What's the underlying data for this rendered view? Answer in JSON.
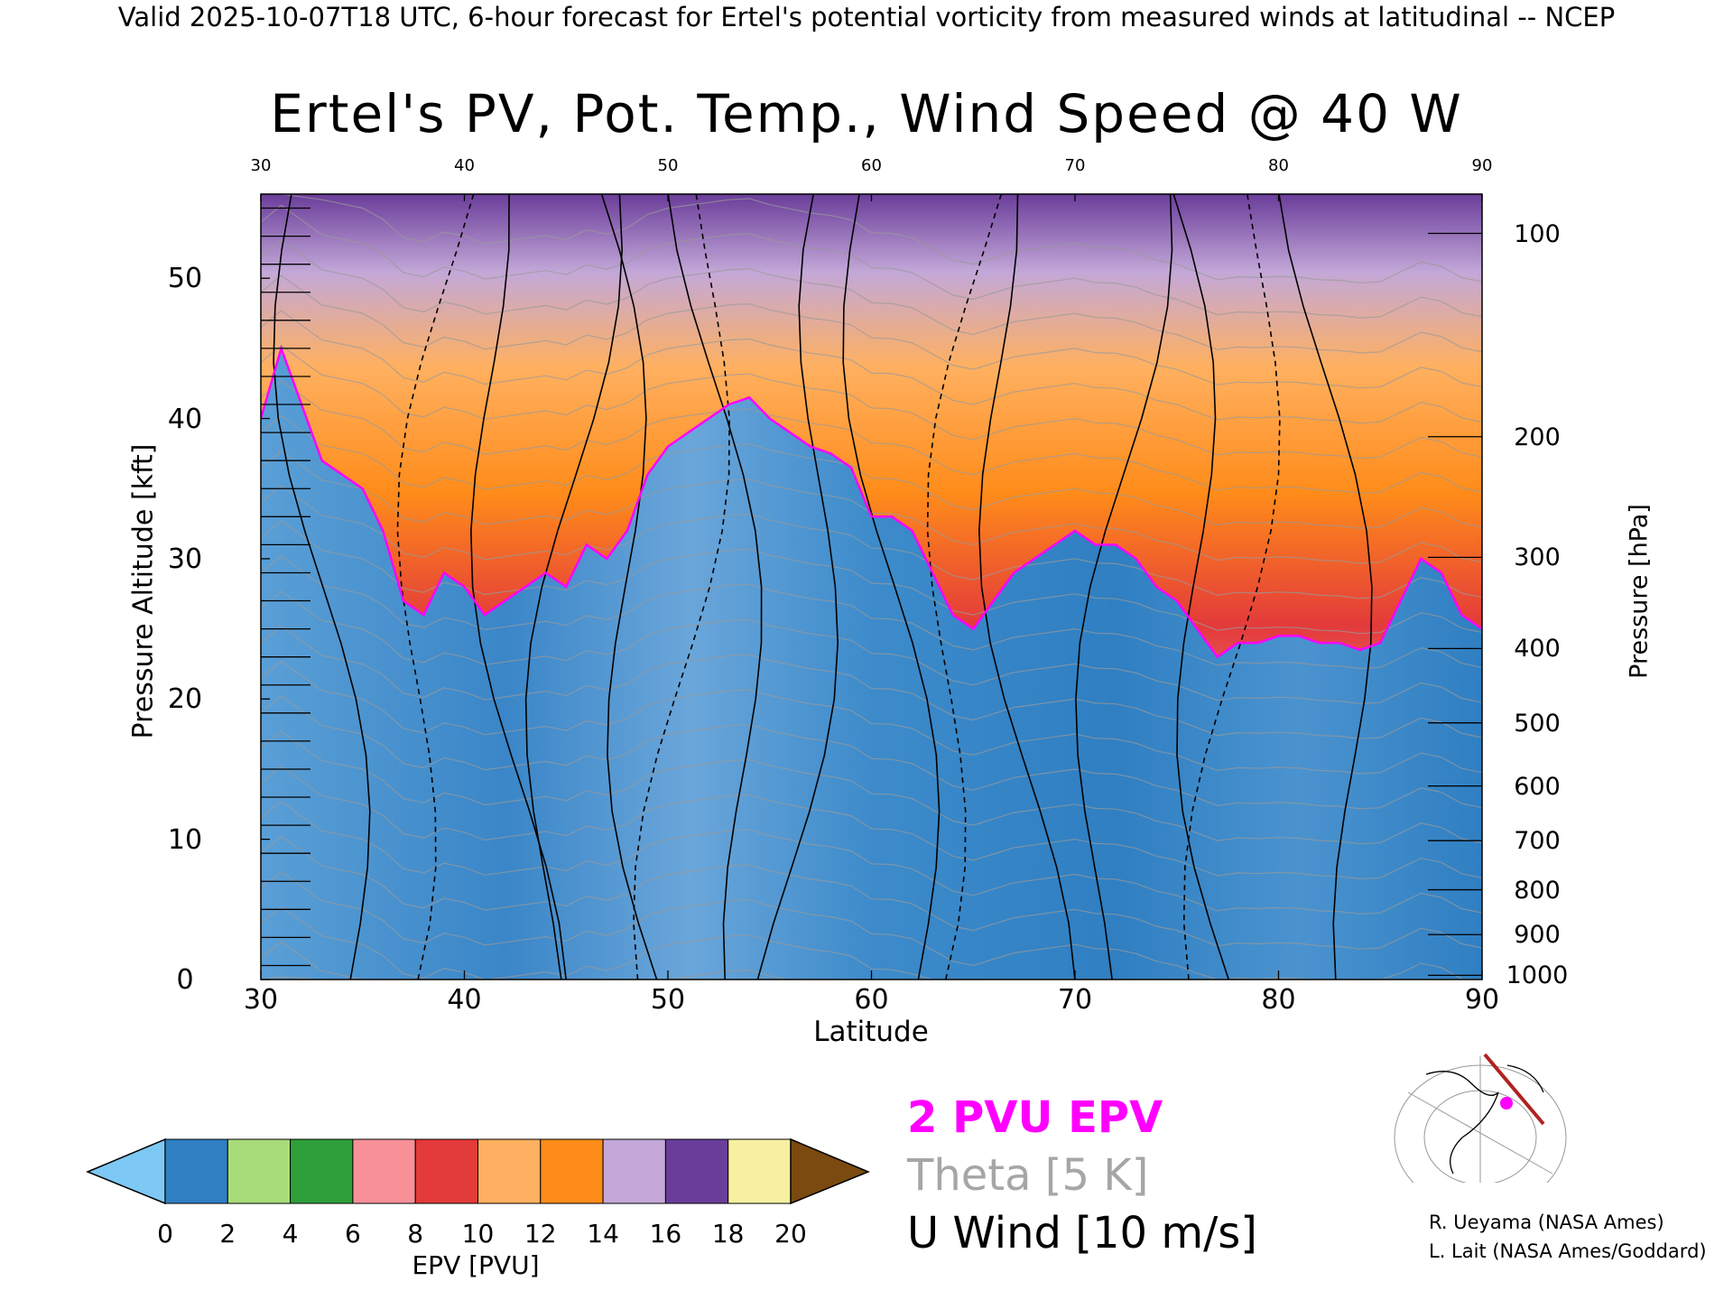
{
  "banner": "Valid 2025-10-07T18 UTC, 6-hour forecast for Ertel's potential vorticity from measured winds at latitudinal -- NCEP",
  "chart_data": {
    "type": "heatmap",
    "title": "Ertel's PV, Pot. Temp., Wind Speed @ 40 W",
    "xlabel": "Latitude",
    "ylabel": "Pressure Altitude [kft]",
    "y2label": "Pressure [hPa]",
    "xlim": [
      30,
      90
    ],
    "ylim": [
      0,
      56
    ],
    "x_ticks": [
      "30",
      "40",
      "50",
      "60",
      "70",
      "80",
      "90"
    ],
    "x_top_ticks": [
      "30",
      "40",
      "50",
      "60",
      "70",
      "80",
      "90"
    ],
    "y_ticks": [
      "0",
      "10",
      "20",
      "30",
      "40",
      "50"
    ],
    "pressure_ticks": [
      {
        "label": "100",
        "alt_kft": 53.2
      },
      {
        "label": "200",
        "alt_kft": 38.7
      },
      {
        "label": "300",
        "alt_kft": 30.1
      },
      {
        "label": "400",
        "alt_kft": 23.6
      },
      {
        "label": "500",
        "alt_kft": 18.3
      },
      {
        "label": "600",
        "alt_kft": 13.8
      },
      {
        "label": "700",
        "alt_kft": 9.9
      },
      {
        "label": "800",
        "alt_kft": 6.4
      },
      {
        "label": "900",
        "alt_kft": 3.2
      },
      {
        "label": "1000",
        "alt_kft": 0.3
      }
    ],
    "tropopause_2pvu_kft": [
      [
        30,
        40
      ],
      [
        31,
        45
      ],
      [
        33,
        37
      ],
      [
        35,
        35
      ],
      [
        36,
        32
      ],
      [
        37,
        27
      ],
      [
        38,
        26
      ],
      [
        39,
        29
      ],
      [
        40,
        28
      ],
      [
        41,
        26
      ],
      [
        42,
        27
      ],
      [
        43,
        28
      ],
      [
        44,
        29
      ],
      [
        45,
        28
      ],
      [
        46,
        31
      ],
      [
        47,
        30
      ],
      [
        48,
        32
      ],
      [
        49,
        36
      ],
      [
        50,
        38
      ],
      [
        51,
        39
      ],
      [
        52,
        40
      ],
      [
        53,
        41
      ],
      [
        54,
        41.5
      ],
      [
        55,
        40
      ],
      [
        56,
        39
      ],
      [
        57,
        38
      ],
      [
        58,
        37.5
      ],
      [
        59,
        36.5
      ],
      [
        60,
        33
      ],
      [
        61,
        33
      ],
      [
        62,
        32
      ],
      [
        63,
        29
      ],
      [
        64,
        26
      ],
      [
        65,
        25
      ],
      [
        66,
        27
      ],
      [
        67,
        29
      ],
      [
        68,
        30
      ],
      [
        69,
        31
      ],
      [
        70,
        32
      ],
      [
        71,
        31
      ],
      [
        72,
        31
      ],
      [
        73,
        30
      ],
      [
        74,
        28
      ],
      [
        75,
        27
      ],
      [
        76,
        25
      ],
      [
        77,
        23
      ],
      [
        78,
        24
      ],
      [
        79,
        24
      ],
      [
        80,
        24.5
      ],
      [
        81,
        24.5
      ],
      [
        82,
        24
      ],
      [
        83,
        24
      ],
      [
        84,
        23.5
      ],
      [
        85,
        24
      ],
      [
        86,
        27
      ],
      [
        87,
        30
      ],
      [
        88,
        29
      ],
      [
        89,
        26
      ],
      [
        90,
        25
      ]
    ],
    "colorbar": {
      "label": "EPV [PVU]",
      "ticks": [
        "0",
        "2",
        "4",
        "6",
        "8",
        "10",
        "12",
        "14",
        "16",
        "18",
        "20"
      ],
      "colors": [
        "#2f7fc2",
        "#a8dc7a",
        "#2f9f3a",
        "#f89098",
        "#e33a3a",
        "#ffb060",
        "#ff8c1a",
        "#c3a8d8",
        "#6a3d9a",
        "#f8f0a0"
      ],
      "under_color": "#7ec8f5",
      "over_color": "#7a4a10"
    },
    "legend": [
      "2 PVU EPV",
      "Theta [5 K]",
      "U Wind [10 m/s]"
    ],
    "series_colors": {
      "pv2": "#ff00ff",
      "theta": "#a6a6a6",
      "wind": "#000000"
    },
    "grid": false
  },
  "credits": [
    "R. Ueyama (NASA Ames)",
    "L. Lait (NASA Ames/Goddard)"
  ]
}
